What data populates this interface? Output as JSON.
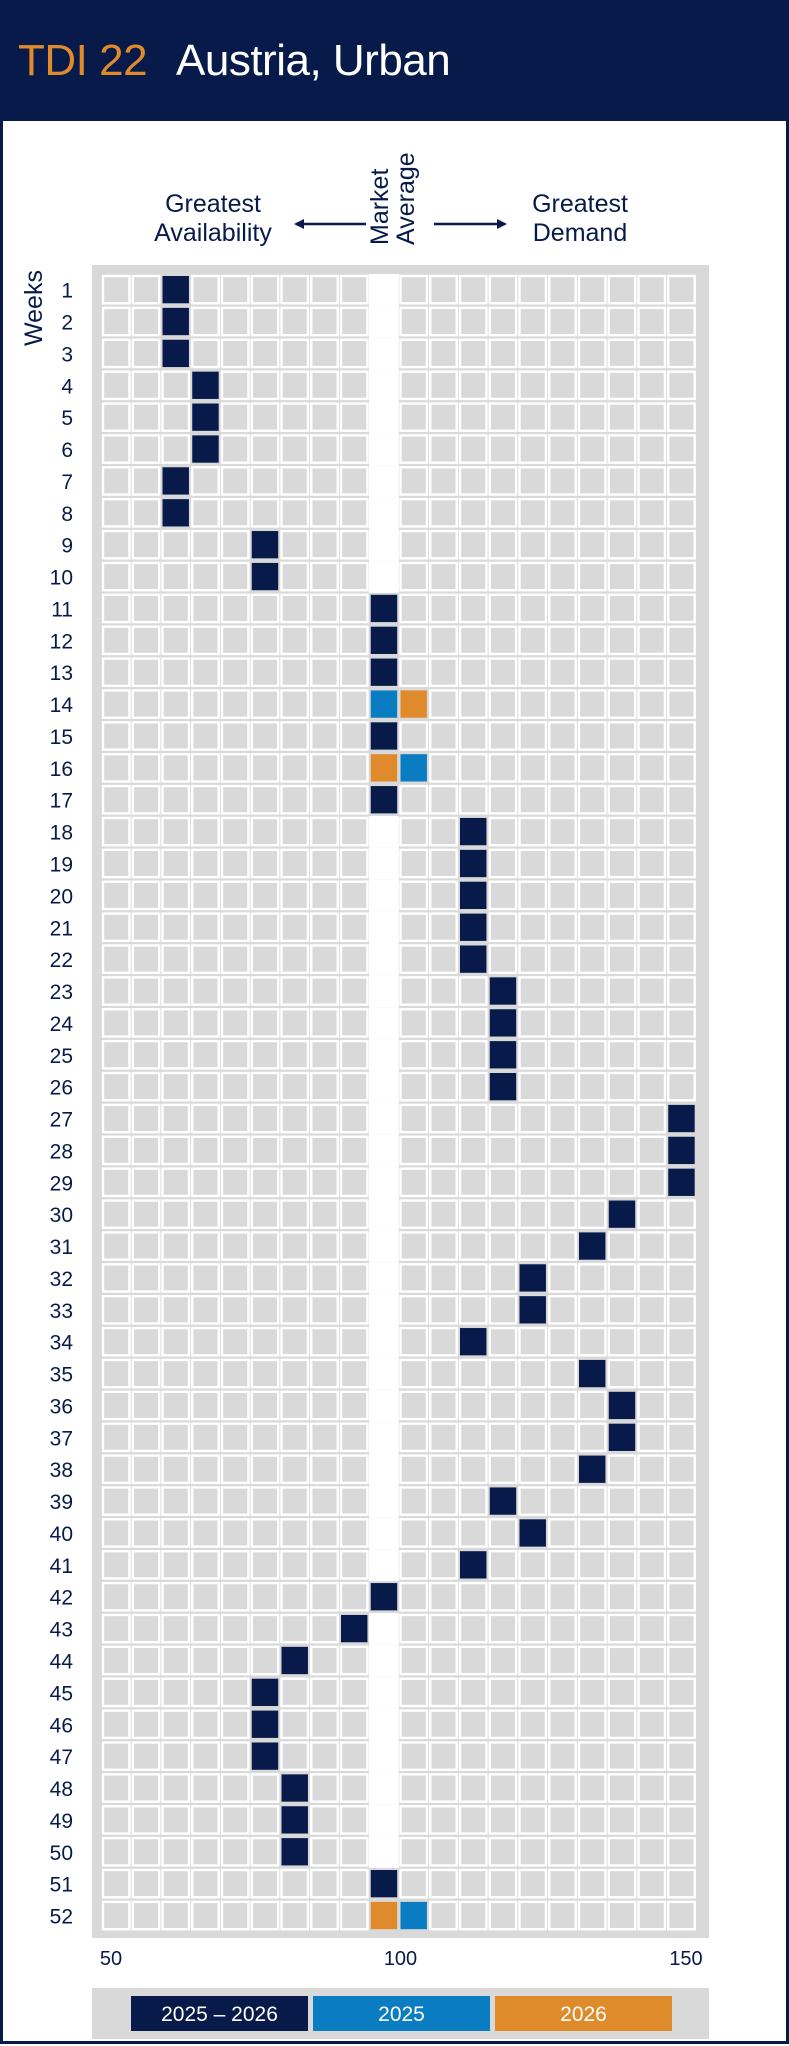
{
  "header": {
    "code": "TDI 22",
    "title": "Austria, Urban"
  },
  "captions": {
    "left_line1": "Greatest",
    "left_line2": "Availability",
    "middle_line1": "Market",
    "middle_line2": "Average",
    "right_line1": "Greatest",
    "right_line2": "Demand",
    "weeks": "Weeks"
  },
  "colors": {
    "both_years": "#071a4a",
    "year_2025": "#0a7cc1",
    "year_2026": "#df8b2b",
    "cell": "#d9d9d9",
    "background": "#d9d9d9"
  },
  "legend": [
    {
      "label": "2025 – 2026",
      "color": "#071a4a"
    },
    {
      "label": "2025",
      "color": "#0a7cc1"
    },
    {
      "label": "2026",
      "color": "#df8b2b"
    }
  ],
  "chart_data": {
    "type": "heatmap",
    "title": "Austria, Urban",
    "ylabel": "Weeks",
    "x_ticks": [
      50,
      100,
      150
    ],
    "x_range": [
      50,
      150
    ],
    "x_bin_width": 5,
    "weeks": [
      1,
      2,
      3,
      4,
      5,
      6,
      7,
      8,
      9,
      10,
      11,
      12,
      13,
      14,
      15,
      16,
      17,
      18,
      19,
      20,
      21,
      22,
      23,
      24,
      25,
      26,
      27,
      28,
      29,
      30,
      31,
      32,
      33,
      34,
      35,
      36,
      37,
      38,
      39,
      40,
      41,
      42,
      43,
      44,
      45,
      46,
      47,
      48,
      49,
      50,
      51,
      52
    ],
    "series": [
      {
        "name": "2025 – 2026",
        "values": [
          65,
          65,
          65,
          70,
          70,
          70,
          65,
          65,
          80,
          80,
          100,
          100,
          100,
          null,
          100,
          null,
          100,
          115,
          115,
          115,
          115,
          115,
          120,
          120,
          120,
          120,
          150,
          150,
          150,
          140,
          135,
          125,
          125,
          115,
          135,
          140,
          140,
          135,
          120,
          125,
          115,
          100,
          95,
          85,
          80,
          80,
          80,
          85,
          85,
          85,
          100,
          null
        ]
      },
      {
        "name": "2025",
        "values": [
          null,
          null,
          null,
          null,
          null,
          null,
          null,
          null,
          null,
          null,
          null,
          null,
          null,
          100,
          null,
          105,
          null,
          null,
          null,
          null,
          null,
          null,
          null,
          null,
          null,
          null,
          null,
          null,
          null,
          null,
          null,
          null,
          null,
          null,
          null,
          null,
          null,
          null,
          null,
          null,
          null,
          null,
          null,
          null,
          null,
          null,
          null,
          null,
          null,
          null,
          null,
          105
        ]
      },
      {
        "name": "2026",
        "values": [
          null,
          null,
          null,
          null,
          null,
          null,
          null,
          null,
          null,
          null,
          null,
          null,
          null,
          105,
          null,
          100,
          null,
          null,
          null,
          null,
          null,
          null,
          null,
          null,
          null,
          null,
          null,
          null,
          null,
          null,
          null,
          null,
          null,
          null,
          null,
          null,
          null,
          null,
          null,
          null,
          null,
          null,
          null,
          null,
          null,
          null,
          null,
          null,
          null,
          null,
          null,
          100
        ]
      }
    ]
  }
}
